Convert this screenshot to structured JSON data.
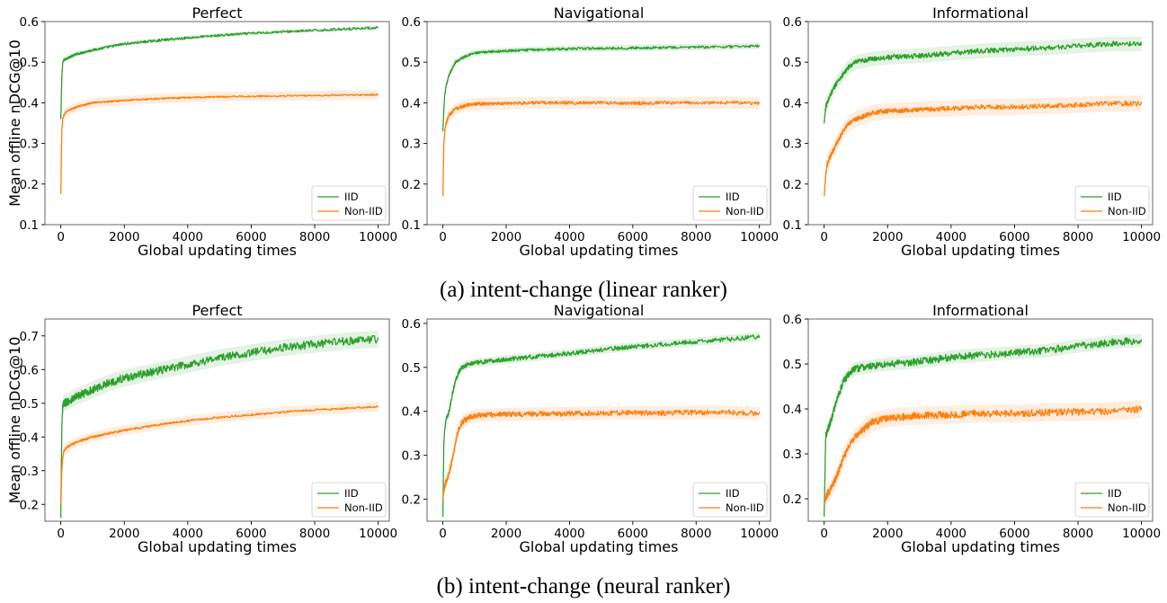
{
  "captions": [
    "(a) intent-change (linear ranker)",
    "(b) intent-change (neural ranker)"
  ],
  "colors": {
    "iid": "#2ca02c",
    "noniid": "#ff7f0e"
  },
  "chart_data": [
    {
      "type": "line",
      "title": "Perfect",
      "xlabel": "Global updating times",
      "ylabel": "Mean offline nDCG@10",
      "xlim": [
        -500,
        10350
      ],
      "ylim": [
        0.1,
        0.6
      ],
      "xticks": [
        0,
        2000,
        4000,
        6000,
        8000,
        10000
      ],
      "yticks": [
        0.1,
        0.2,
        0.3,
        0.4,
        0.5,
        0.6
      ],
      "legend": "lower-right",
      "series": [
        {
          "name": "IID",
          "x": [
            0,
            30,
            60,
            100,
            200,
            500,
            1000,
            2000,
            3000,
            4000,
            5000,
            6000,
            7000,
            8000,
            9000,
            10000
          ],
          "values": [
            0.36,
            0.46,
            0.5,
            0.505,
            0.51,
            0.52,
            0.53,
            0.545,
            0.553,
            0.56,
            0.566,
            0.571,
            0.575,
            0.578,
            0.582,
            0.585
          ],
          "noise": 0.003,
          "band": 0.004
        },
        {
          "name": "Non-IID",
          "x": [
            0,
            30,
            60,
            100,
            200,
            500,
            1000,
            2000,
            3000,
            4000,
            5000,
            6000,
            7000,
            8000,
            9000,
            10000
          ],
          "values": [
            0.175,
            0.33,
            0.36,
            0.37,
            0.38,
            0.39,
            0.4,
            0.406,
            0.41,
            0.413,
            0.415,
            0.416,
            0.417,
            0.418,
            0.419,
            0.42
          ],
          "noise": 0.002,
          "band": 0.012
        }
      ]
    },
    {
      "type": "line",
      "title": "Navigational",
      "xlabel": "Global updating times",
      "ylabel": "",
      "xlim": [
        -500,
        10350
      ],
      "ylim": [
        0.1,
        0.6
      ],
      "xticks": [
        0,
        2000,
        4000,
        6000,
        8000,
        10000
      ],
      "yticks": [
        0.1,
        0.2,
        0.3,
        0.4,
        0.5,
        0.6
      ],
      "legend": "lower-right",
      "series": [
        {
          "name": "IID",
          "x": [
            0,
            30,
            60,
            100,
            200,
            400,
            600,
            800,
            1000,
            1500,
            2000,
            3000,
            4000,
            5000,
            6000,
            7000,
            8000,
            9000,
            10000
          ],
          "values": [
            0.33,
            0.38,
            0.42,
            0.44,
            0.47,
            0.5,
            0.51,
            0.518,
            0.522,
            0.526,
            0.528,
            0.531,
            0.533,
            0.534,
            0.535,
            0.536,
            0.537,
            0.538,
            0.54
          ],
          "noise": 0.003,
          "band": 0.008
        },
        {
          "name": "Non-IID",
          "x": [
            0,
            30,
            60,
            100,
            200,
            400,
            600,
            800,
            1000,
            1500,
            2000,
            3000,
            4000,
            5000,
            6000,
            7000,
            8000,
            9000,
            10000
          ],
          "values": [
            0.17,
            0.3,
            0.33,
            0.35,
            0.37,
            0.385,
            0.39,
            0.395,
            0.397,
            0.398,
            0.399,
            0.4,
            0.4,
            0.4,
            0.399,
            0.4,
            0.4,
            0.401,
            0.399
          ],
          "noise": 0.004,
          "band": 0.015
        }
      ]
    },
    {
      "type": "line",
      "title": "Informational",
      "xlabel": "Global updating times",
      "ylabel": "",
      "xlim": [
        -500,
        10350
      ],
      "ylim": [
        0.1,
        0.6
      ],
      "xticks": [
        0,
        2000,
        4000,
        6000,
        8000,
        10000
      ],
      "yticks": [
        0.1,
        0.2,
        0.3,
        0.4,
        0.5,
        0.6
      ],
      "legend": "lower-right",
      "series": [
        {
          "name": "IID",
          "x": [
            0,
            50,
            100,
            200,
            400,
            600,
            800,
            1000,
            1500,
            2000,
            3000,
            4000,
            5000,
            6000,
            7000,
            8000,
            9000,
            10000
          ],
          "values": [
            0.35,
            0.39,
            0.4,
            0.42,
            0.45,
            0.47,
            0.49,
            0.5,
            0.508,
            0.512,
            0.516,
            0.522,
            0.528,
            0.532,
            0.535,
            0.54,
            0.545,
            0.545
          ],
          "noise": 0.006,
          "band": 0.018
        },
        {
          "name": "Non-IID",
          "x": [
            0,
            50,
            100,
            200,
            400,
            600,
            800,
            1000,
            1500,
            2000,
            3000,
            4000,
            5000,
            6000,
            7000,
            8000,
            9000,
            10000
          ],
          "values": [
            0.17,
            0.22,
            0.25,
            0.27,
            0.3,
            0.33,
            0.35,
            0.36,
            0.375,
            0.38,
            0.383,
            0.386,
            0.39,
            0.39,
            0.392,
            0.395,
            0.398,
            0.398
          ],
          "noise": 0.006,
          "band": 0.02
        }
      ]
    },
    {
      "type": "line",
      "title": "Perfect",
      "xlabel": "Global updating times",
      "ylabel": "Mean offline nDCG@10",
      "xlim": [
        -500,
        10350
      ],
      "ylim": [
        0.15,
        0.75
      ],
      "xticks": [
        0,
        2000,
        4000,
        6000,
        8000,
        10000
      ],
      "yticks": [
        0.2,
        0.3,
        0.4,
        0.5,
        0.6,
        0.7
      ],
      "legend": "lower-right",
      "series": [
        {
          "name": "IID",
          "x": [
            0,
            30,
            60,
            100,
            200,
            500,
            1000,
            1500,
            2000,
            3000,
            4000,
            5000,
            6000,
            7000,
            8000,
            9000,
            10000
          ],
          "values": [
            0.16,
            0.42,
            0.49,
            0.5,
            0.505,
            0.52,
            0.54,
            0.56,
            0.575,
            0.595,
            0.615,
            0.635,
            0.65,
            0.665,
            0.675,
            0.685,
            0.69
          ],
          "noise": 0.012,
          "band": 0.025
        },
        {
          "name": "Non-IID",
          "x": [
            0,
            30,
            60,
            100,
            200,
            500,
            1000,
            1500,
            2000,
            3000,
            4000,
            5000,
            6000,
            7000,
            8000,
            9000,
            10000
          ],
          "values": [
            0.2,
            0.3,
            0.34,
            0.36,
            0.37,
            0.385,
            0.4,
            0.41,
            0.42,
            0.435,
            0.448,
            0.458,
            0.466,
            0.474,
            0.48,
            0.485,
            0.49
          ],
          "noise": 0.003,
          "band": 0.015
        }
      ]
    },
    {
      "type": "line",
      "title": "Navigational",
      "xlabel": "Global updating times",
      "ylabel": "",
      "xlim": [
        -500,
        10350
      ],
      "ylim": [
        0.15,
        0.61
      ],
      "xticks": [
        0,
        2000,
        4000,
        6000,
        8000,
        10000
      ],
      "yticks": [
        0.2,
        0.3,
        0.4,
        0.5,
        0.6
      ],
      "legend": "lower-right",
      "series": [
        {
          "name": "IID",
          "x": [
            0,
            30,
            60,
            100,
            200,
            300,
            400,
            500,
            600,
            800,
            1000,
            1500,
            2000,
            3000,
            4000,
            5000,
            6000,
            7000,
            8000,
            9000,
            10000
          ],
          "values": [
            0.16,
            0.33,
            0.36,
            0.38,
            0.4,
            0.44,
            0.47,
            0.49,
            0.5,
            0.507,
            0.51,
            0.514,
            0.518,
            0.525,
            0.532,
            0.54,
            0.547,
            0.553,
            0.558,
            0.564,
            0.57
          ],
          "noise": 0.005,
          "band": 0.01
        },
        {
          "name": "Non-IID",
          "x": [
            0,
            30,
            60,
            100,
            200,
            300,
            400,
            500,
            600,
            800,
            1000,
            1500,
            2000,
            3000,
            4000,
            5000,
            6000,
            7000,
            8000,
            9000,
            10000
          ],
          "values": [
            0.2,
            0.22,
            0.23,
            0.24,
            0.26,
            0.29,
            0.33,
            0.36,
            0.375,
            0.385,
            0.39,
            0.392,
            0.393,
            0.394,
            0.395,
            0.396,
            0.397,
            0.396,
            0.398,
            0.398,
            0.395
          ],
          "noise": 0.006,
          "band": 0.015
        }
      ]
    },
    {
      "type": "line",
      "title": "Informational",
      "xlabel": "Global updating times",
      "ylabel": "",
      "xlim": [
        -500,
        10350
      ],
      "ylim": [
        0.15,
        0.6
      ],
      "xticks": [
        0,
        2000,
        4000,
        6000,
        8000,
        10000
      ],
      "yticks": [
        0.2,
        0.3,
        0.4,
        0.5,
        0.6
      ],
      "legend": "lower-right",
      "series": [
        {
          "name": "IID",
          "x": [
            0,
            50,
            100,
            200,
            400,
            600,
            800,
            1000,
            1500,
            2000,
            3000,
            4000,
            5000,
            6000,
            7000,
            8000,
            9000,
            10000
          ],
          "values": [
            0.16,
            0.34,
            0.35,
            0.37,
            0.42,
            0.46,
            0.48,
            0.49,
            0.495,
            0.5,
            0.505,
            0.515,
            0.52,
            0.525,
            0.53,
            0.54,
            0.548,
            0.552
          ],
          "noise": 0.008,
          "band": 0.015
        },
        {
          "name": "Non-IID",
          "x": [
            0,
            50,
            100,
            200,
            400,
            600,
            800,
            1000,
            1500,
            2000,
            3000,
            4000,
            5000,
            6000,
            7000,
            8000,
            9000,
            10000
          ],
          "values": [
            0.2,
            0.2,
            0.21,
            0.22,
            0.25,
            0.29,
            0.32,
            0.34,
            0.37,
            0.38,
            0.385,
            0.387,
            0.39,
            0.39,
            0.392,
            0.393,
            0.395,
            0.4
          ],
          "noise": 0.008,
          "band": 0.02
        }
      ]
    }
  ]
}
